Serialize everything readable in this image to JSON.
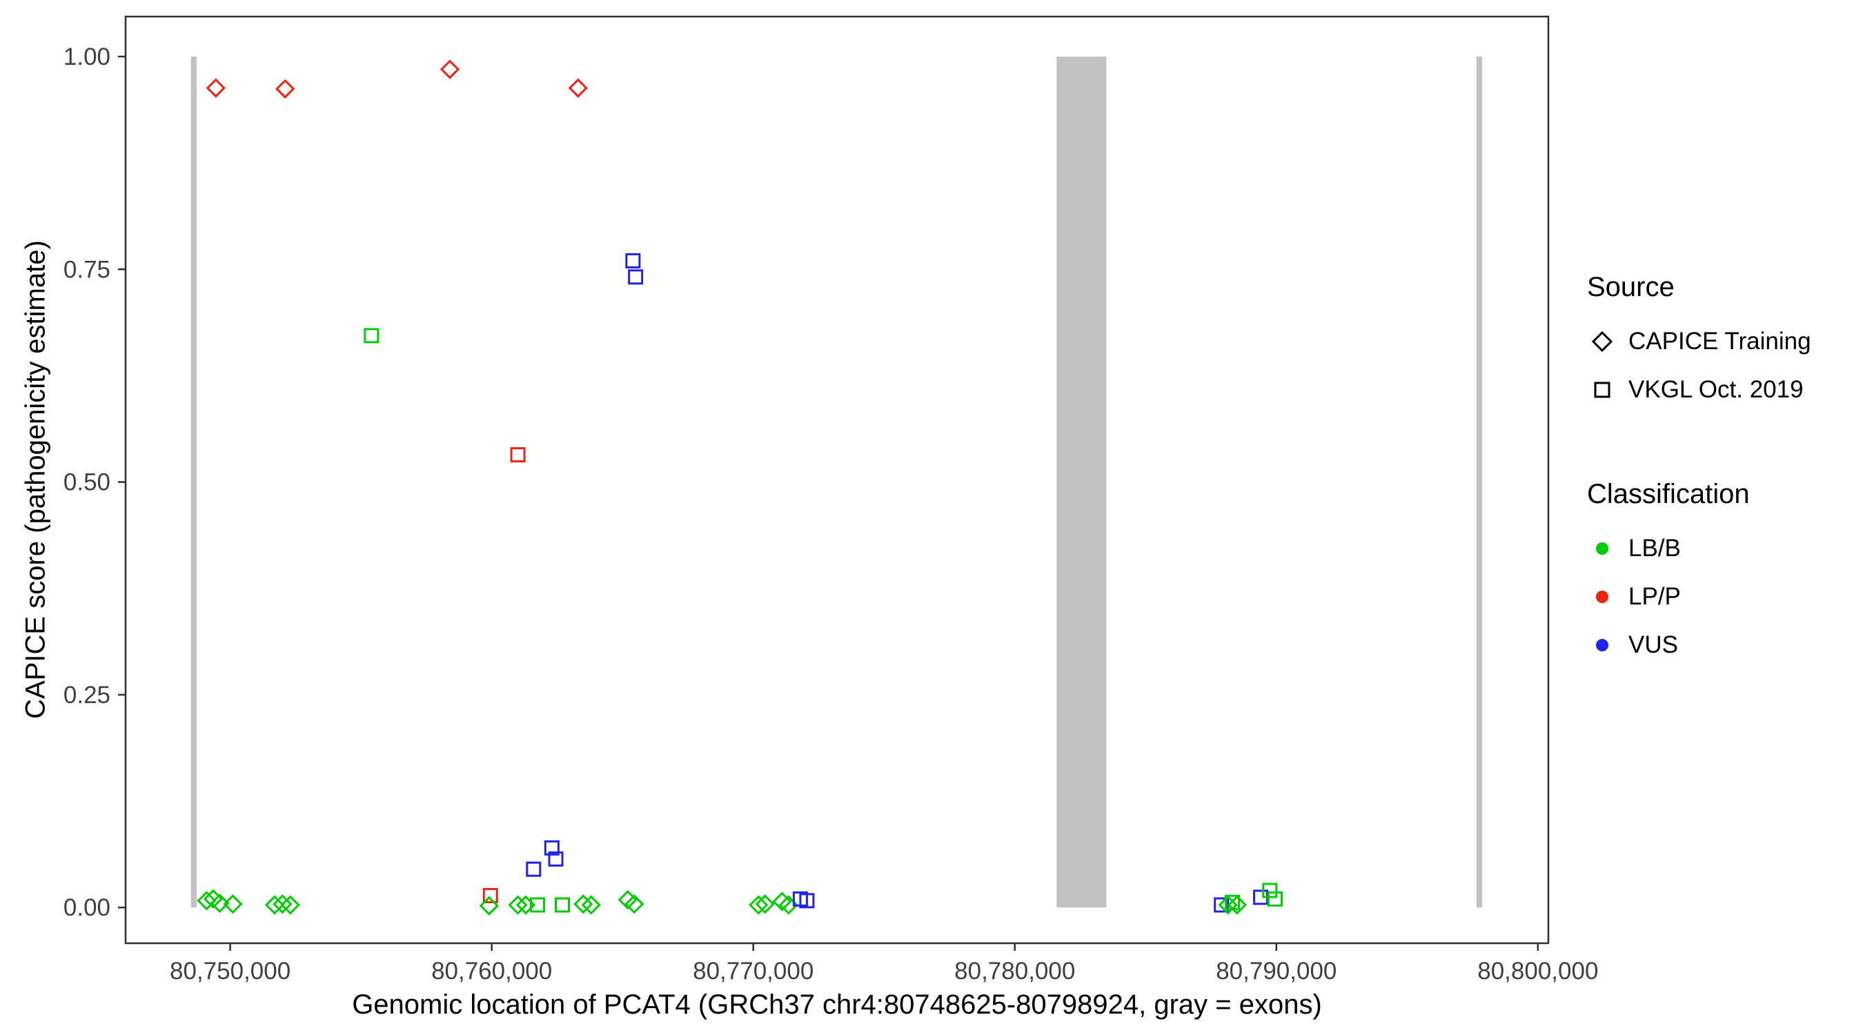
{
  "chart_data": {
    "type": "scatter",
    "title": "",
    "xlabel": "Genomic location of PCAT4 (GRCh37 chr4:80748625-80798924, gray = exons)",
    "ylabel": "CAPICE score (pathogenicity estimate)",
    "x_domain": [
      80746000,
      80800400
    ],
    "y_domain": [
      -0.042,
      1.047
    ],
    "x_ticks": [
      80750000,
      80760000,
      80770000,
      80780000,
      80790000,
      80800000
    ],
    "x_tick_labels": [
      "80,750,000",
      "80,760,000",
      "80,770,000",
      "80,780,000",
      "80,790,000",
      "80,800,000"
    ],
    "y_ticks": [
      0,
      0.25,
      0.5,
      0.75,
      1.0
    ],
    "y_tick_labels": [
      "0.00",
      "0.25",
      "0.50",
      "0.75",
      "1.00"
    ],
    "grid": "off",
    "exon_color": "#c2c2c2",
    "exon_y_range": [
      0,
      1
    ],
    "exons": [
      {
        "start": 80748500,
        "end": 80748720
      },
      {
        "start": 80781600,
        "end": 80783500
      },
      {
        "start": 80797650,
        "end": 80797870
      }
    ],
    "colors": {
      "LB/B": "#00cc00",
      "LP/P": "#ee2211",
      "VUS": "#2222ee"
    },
    "marker_by_source": {
      "CAPICE Training": "diamond",
      "VKGL Oct. 2019": "square"
    },
    "points": [
      {
        "x": 80749450,
        "y": 0.963,
        "classification": "LP/P",
        "source": "CAPICE Training"
      },
      {
        "x": 80752100,
        "y": 0.962,
        "classification": "LP/P",
        "source": "CAPICE Training"
      },
      {
        "x": 80758400,
        "y": 0.985,
        "classification": "LP/P",
        "source": "CAPICE Training"
      },
      {
        "x": 80763300,
        "y": 0.963,
        "classification": "LP/P",
        "source": "CAPICE Training"
      },
      {
        "x": 80755400,
        "y": 0.672,
        "classification": "LB/B",
        "source": "VKGL Oct. 2019"
      },
      {
        "x": 80761000,
        "y": 0.532,
        "classification": "LP/P",
        "source": "VKGL Oct. 2019"
      },
      {
        "x": 80765400,
        "y": 0.76,
        "classification": "VUS",
        "source": "VKGL Oct. 2019"
      },
      {
        "x": 80765500,
        "y": 0.741,
        "classification": "VUS",
        "source": "VKGL Oct. 2019"
      },
      {
        "x": 80761600,
        "y": 0.045,
        "classification": "VUS",
        "source": "VKGL Oct. 2019"
      },
      {
        "x": 80762300,
        "y": 0.07,
        "classification": "VUS",
        "source": "VKGL Oct. 2019"
      },
      {
        "x": 80762450,
        "y": 0.057,
        "classification": "VUS",
        "source": "VKGL Oct. 2019"
      },
      {
        "x": 80759950,
        "y": 0.014,
        "classification": "LP/P",
        "source": "VKGL Oct. 2019"
      },
      {
        "x": 80749100,
        "y": 0.008,
        "classification": "LB/B",
        "source": "CAPICE Training"
      },
      {
        "x": 80749350,
        "y": 0.01,
        "classification": "LB/B",
        "source": "CAPICE Training"
      },
      {
        "x": 80749600,
        "y": 0.005,
        "classification": "LB/B",
        "source": "CAPICE Training"
      },
      {
        "x": 80750100,
        "y": 0.004,
        "classification": "LB/B",
        "source": "CAPICE Training"
      },
      {
        "x": 80751700,
        "y": 0.003,
        "classification": "LB/B",
        "source": "CAPICE Training"
      },
      {
        "x": 80752000,
        "y": 0.004,
        "classification": "LB/B",
        "source": "CAPICE Training"
      },
      {
        "x": 80752300,
        "y": 0.003,
        "classification": "LB/B",
        "source": "CAPICE Training"
      },
      {
        "x": 80759900,
        "y": 0.002,
        "classification": "LB/B",
        "source": "CAPICE Training"
      },
      {
        "x": 80761000,
        "y": 0.003,
        "classification": "LB/B",
        "source": "CAPICE Training"
      },
      {
        "x": 80761300,
        "y": 0.003,
        "classification": "LB/B",
        "source": "CAPICE Training"
      },
      {
        "x": 80761750,
        "y": 0.003,
        "classification": "LB/B",
        "source": "VKGL Oct. 2019"
      },
      {
        "x": 80762700,
        "y": 0.003,
        "classification": "LB/B",
        "source": "VKGL Oct. 2019"
      },
      {
        "x": 80763500,
        "y": 0.004,
        "classification": "LB/B",
        "source": "CAPICE Training"
      },
      {
        "x": 80763800,
        "y": 0.003,
        "classification": "LB/B",
        "source": "CAPICE Training"
      },
      {
        "x": 80765200,
        "y": 0.009,
        "classification": "LB/B",
        "source": "CAPICE Training"
      },
      {
        "x": 80765450,
        "y": 0.004,
        "classification": "LB/B",
        "source": "CAPICE Training"
      },
      {
        "x": 80770200,
        "y": 0.003,
        "classification": "LB/B",
        "source": "CAPICE Training"
      },
      {
        "x": 80770450,
        "y": 0.004,
        "classification": "LB/B",
        "source": "CAPICE Training"
      },
      {
        "x": 80771100,
        "y": 0.007,
        "classification": "LB/B",
        "source": "CAPICE Training"
      },
      {
        "x": 80771350,
        "y": 0.003,
        "classification": "LB/B",
        "source": "CAPICE Training"
      },
      {
        "x": 80771800,
        "y": 0.01,
        "classification": "VUS",
        "source": "VKGL Oct. 2019"
      },
      {
        "x": 80772050,
        "y": 0.008,
        "classification": "VUS",
        "source": "VKGL Oct. 2019"
      },
      {
        "x": 80787900,
        "y": 0.003,
        "classification": "VUS",
        "source": "VKGL Oct. 2019"
      },
      {
        "x": 80788150,
        "y": 0.003,
        "classification": "LB/B",
        "source": "CAPICE Training"
      },
      {
        "x": 80788320,
        "y": 0.006,
        "classification": "LB/B",
        "source": "VKGL Oct. 2019"
      },
      {
        "x": 80788500,
        "y": 0.003,
        "classification": "LB/B",
        "source": "CAPICE Training"
      },
      {
        "x": 80789400,
        "y": 0.012,
        "classification": "VUS",
        "source": "VKGL Oct. 2019"
      },
      {
        "x": 80789750,
        "y": 0.02,
        "classification": "LB/B",
        "source": "VKGL Oct. 2019"
      },
      {
        "x": 80789950,
        "y": 0.01,
        "classification": "LB/B",
        "source": "VKGL Oct. 2019"
      }
    ]
  },
  "legend": {
    "source": {
      "title": "Source",
      "items": [
        {
          "label": "CAPICE Training",
          "marker": "diamond"
        },
        {
          "label": "VKGL Oct. 2019",
          "marker": "square"
        }
      ]
    },
    "classification": {
      "title": "Classification",
      "items": [
        {
          "label": "LB/B",
          "color": "#00cc00"
        },
        {
          "label": "LP/P",
          "color": "#ee2211"
        },
        {
          "label": "VUS",
          "color": "#2222ee"
        }
      ]
    }
  },
  "style": {
    "panel_border_color": "#2f2f2f",
    "tick_label_color": "#404040",
    "key_outline_color": "#000000"
  }
}
